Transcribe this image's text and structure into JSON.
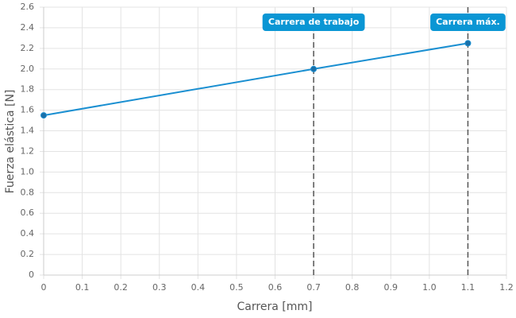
{
  "chart_data": {
    "type": "line",
    "x_label": "Carrera [mm]",
    "y_label": "Fuerza elástica [N]",
    "x": [
      0,
      0.7,
      1.1
    ],
    "values": [
      1.55,
      2.0,
      2.25
    ],
    "color": "#1a8fd1",
    "xlim": [
      0,
      1.2
    ],
    "ylim": [
      0,
      2.6
    ],
    "xticks": [
      0,
      0.1,
      0.2,
      0.3,
      0.4,
      0.5,
      0.6,
      0.7,
      0.8,
      0.9,
      {
        "value": 1,
        "label": "1.0"
      },
      1.1,
      1.2
    ],
    "yticks": [
      0,
      0.2,
      0.4,
      0.6,
      0.8,
      {
        "value": 1,
        "label": "1.0"
      },
      1.2,
      1.4,
      1.6,
      1.8,
      {
        "value": 2,
        "label": "2.0"
      },
      2.2,
      2.4,
      2.6
    ],
    "grid": true,
    "annotations": [
      {
        "x": 0.7,
        "label": "Carrera de trabajo"
      },
      {
        "x": 1.1,
        "label": "Carrera máx."
      }
    ],
    "annotation_color": "#0a96d4"
  }
}
